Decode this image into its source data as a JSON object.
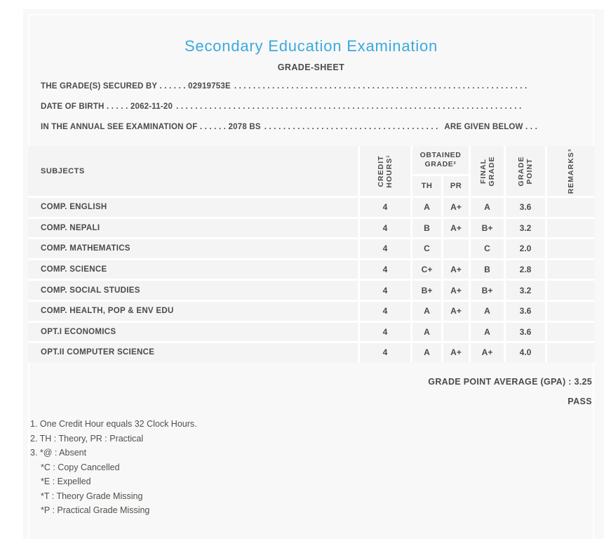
{
  "colors": {
    "accent_blue": "#3aa9e0",
    "text_dark": "#4a4a4a",
    "card_bg": "#f8f8f8",
    "cell_bg": "#f4f4f4"
  },
  "header": {
    "title": "Secondary Education Examination",
    "subtitle": "GRADE-SHEET"
  },
  "student_info": {
    "line1": {
      "text": "THE GRADE(S) SECURED BY . . . . . . 02919753E",
      "dots": ". . . . . . . . . . . . . . . . . . . . . . . . . . . . . . . . . . . . . . . . . . . . . . . . . . . . . . . . . . . . . . . . . . . . . . . . . . . . . . . . . . . . . . . . . . . ."
    },
    "line2": {
      "text": "DATE OF BIRTH . . . . . 2062-11-20",
      "dots": ". . . . . . . . . . . . . . . . . . . . . . . . . . . . . . . . . . . . . . . . . . . . . . . . . . . . . . . . . . . . . . . . . . . . . . . . . . . . . . . . . . . . . . . . . . . ."
    },
    "line3": {
      "text": "IN THE ANNUAL SEE EXAMINATION OF . . . . . . 2078 BS",
      "dots": ". . . . . . . . . . . . . . . . . . . . . . . . . . . . . . . . . . . . . . . . . . . . . . . . . . . .",
      "suffix": "ARE GIVEN BELOW . . ."
    }
  },
  "table": {
    "headers": {
      "subjects": "SUBJECTS",
      "credit_hours": [
        "CREDIT",
        "HOURS¹"
      ],
      "obtained_grade": [
        "OBTAINED",
        "GRADE²"
      ],
      "th": "TH",
      "pr": "PR",
      "final_grade": [
        "FINAL",
        "GRADE"
      ],
      "grade_point": [
        "GRADE",
        "POINT"
      ],
      "remarks": "REMARKS³"
    },
    "rows": [
      {
        "subject": "COMP. ENGLISH",
        "credit": "4",
        "th": "A",
        "pr": "A+",
        "final": "A",
        "gp": "3.6",
        "remarks": ""
      },
      {
        "subject": "COMP. NEPALI",
        "credit": "4",
        "th": "B",
        "pr": "A+",
        "final": "B+",
        "gp": "3.2",
        "remarks": ""
      },
      {
        "subject": "COMP. MATHEMATICS",
        "credit": "4",
        "th": "C",
        "pr": "",
        "final": "C",
        "gp": "2.0",
        "remarks": ""
      },
      {
        "subject": "COMP. SCIENCE",
        "credit": "4",
        "th": "C+",
        "pr": "A+",
        "final": "B",
        "gp": "2.8",
        "remarks": ""
      },
      {
        "subject": "COMP. SOCIAL STUDIES",
        "credit": "4",
        "th": "B+",
        "pr": "A+",
        "final": "B+",
        "gp": "3.2",
        "remarks": ""
      },
      {
        "subject": "COMP. HEALTH, POP & ENV EDU",
        "credit": "4",
        "th": "A",
        "pr": "A+",
        "final": "A",
        "gp": "3.6",
        "remarks": ""
      },
      {
        "subject": "OPT.I ECONOMICS",
        "credit": "4",
        "th": "A",
        "pr": "",
        "final": "A",
        "gp": "3.6",
        "remarks": ""
      },
      {
        "subject": "OPT.II COMPUTER SCIENCE",
        "credit": "4",
        "th": "A",
        "pr": "A+",
        "final": "A+",
        "gp": "4.0",
        "remarks": ""
      }
    ]
  },
  "summary": {
    "gpa": "GRADE POINT AVERAGE (GPA) : 3.25",
    "result": "PASS"
  },
  "footnotes": [
    {
      "text": "1. One Credit Hour equals 32 Clock Hours.",
      "indent": false
    },
    {
      "text": "2. TH : Theory, PR : Practical",
      "indent": false
    },
    {
      "text": "3. *@ : Absent",
      "indent": false
    },
    {
      "text": "*C : Copy Cancelled",
      "indent": true
    },
    {
      "text": "*E : Expelled",
      "indent": true
    },
    {
      "text": "*T : Theory Grade Missing",
      "indent": true
    },
    {
      "text": "*P : Practical Grade Missing",
      "indent": true
    }
  ]
}
